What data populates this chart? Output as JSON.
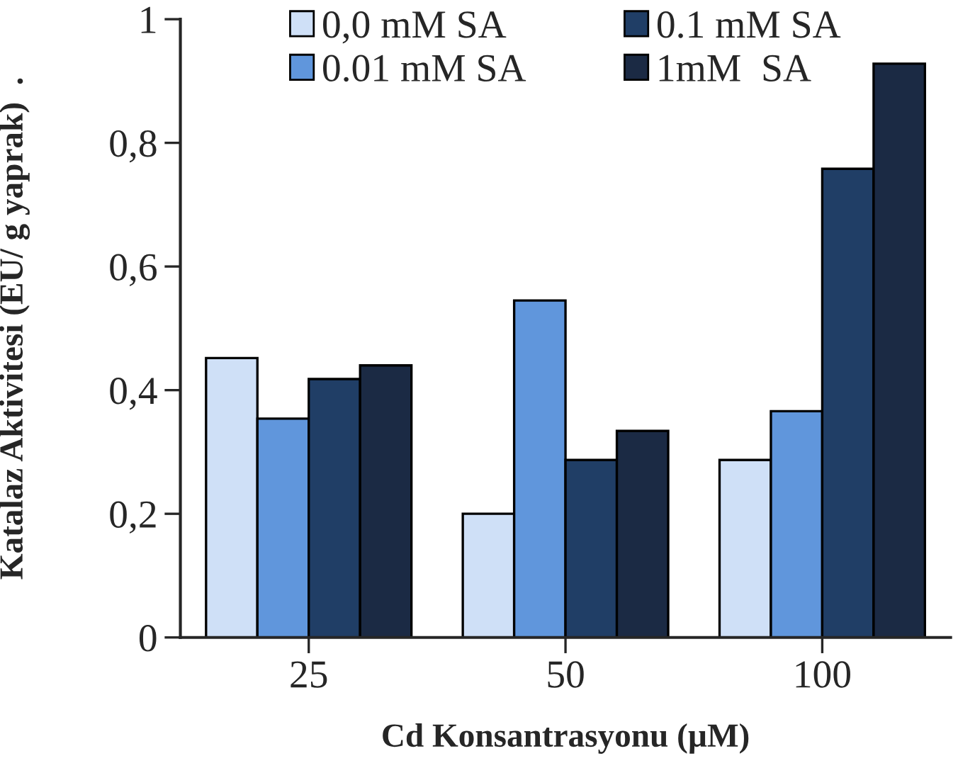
{
  "chart_data": {
    "type": "bar",
    "xlabel": "Cd Konsantrasyonu (µM)",
    "ylabel": "Katalaz Aktivitesi (EU/ g yaprak)  .",
    "categories": [
      "25",
      "50",
      "100"
    ],
    "series": [
      {
        "name": "0,0 mM SA",
        "color": "#cfe0f7",
        "values": [
          0.452,
          0.2,
          0.287
        ]
      },
      {
        "name": "0.01 mM SA",
        "color": "#6096dc",
        "values": [
          0.354,
          0.545,
          0.366
        ]
      },
      {
        "name": "0.1 mM SA",
        "color": "#203e66",
        "values": [
          0.418,
          0.287,
          0.758
        ]
      },
      {
        "name": "1mM  SA",
        "color": "#1b2a44",
        "values": [
          0.44,
          0.334,
          0.928
        ]
      }
    ],
    "ylim": [
      0,
      1
    ],
    "yticks": [
      {
        "value": 0,
        "label": "0"
      },
      {
        "value": 0.2,
        "label": "0,2"
      },
      {
        "value": 0.4,
        "label": "0,4"
      },
      {
        "value": 0.6,
        "label": "0,6"
      },
      {
        "value": 0.8,
        "label": "0,8"
      },
      {
        "value": 1,
        "label": "1"
      }
    ],
    "grid": false,
    "legend": "top"
  }
}
